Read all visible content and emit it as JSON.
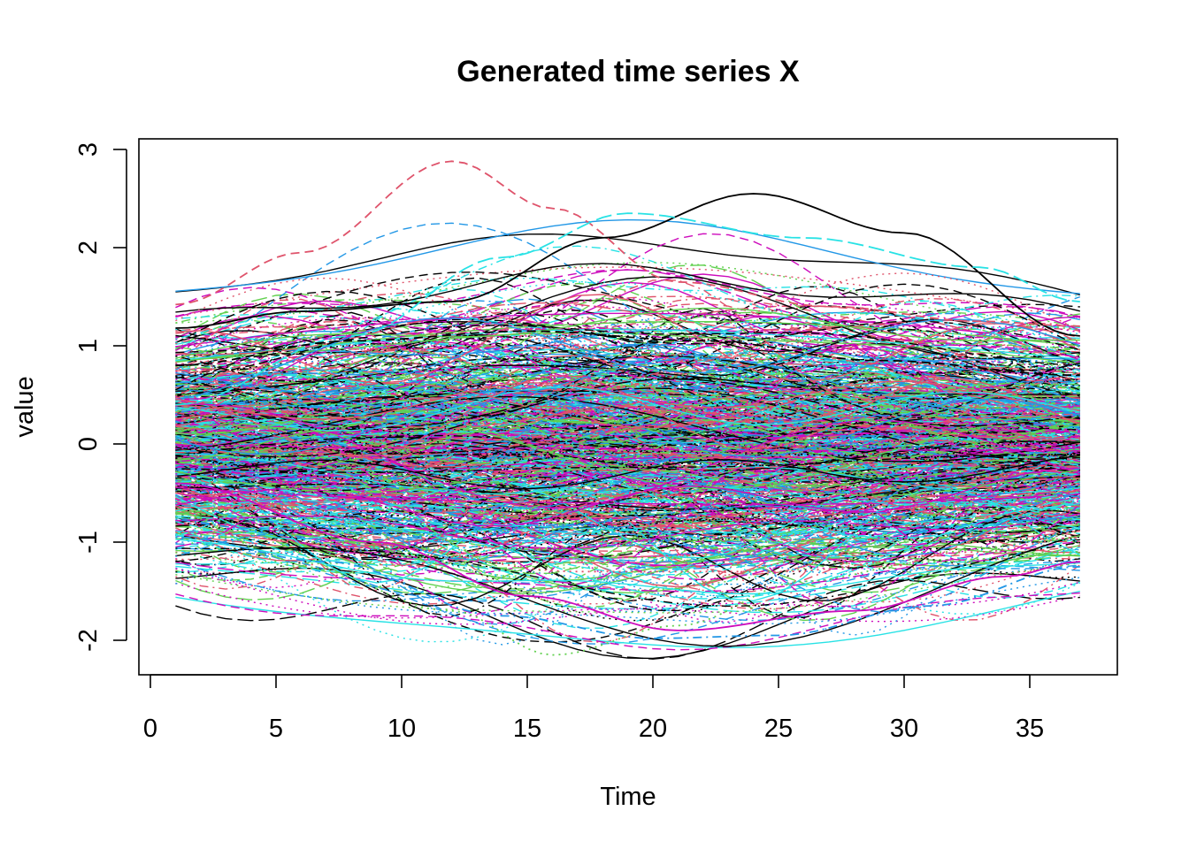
{
  "chart_data": {
    "type": "line",
    "title": "Generated time series X",
    "xlabel": "Time",
    "ylabel": "value",
    "xlim": [
      0,
      38
    ],
    "ylim": [
      -2.3,
      3.1
    ],
    "x_ticks": [
      0,
      5,
      10,
      15,
      20,
      25,
      30,
      35
    ],
    "y_ticks": [
      -2,
      -1,
      0,
      1,
      2,
      3
    ],
    "x_range": [
      1,
      37
    ],
    "legend": "none",
    "grid": false,
    "line_colors": [
      "#000000",
      "#DF536B",
      "#61D04F",
      "#2297E6",
      "#28E2E5",
      "#CD0BBC"
    ],
    "line_styles": [
      "solid",
      "dashed",
      "dotted",
      "dotdash",
      "longdash"
    ],
    "series_count": 800,
    "highlight_series": [
      {
        "x": [
          1,
          6,
          12,
          18,
          24,
          30,
          37
        ],
        "y": [
          1.18,
          1.35,
          1.45,
          2.1,
          2.55,
          2.15,
          1.1
        ]
      },
      {
        "x": [
          1,
          6,
          12,
          16,
          21,
          27,
          33,
          37
        ],
        "y": [
          1.42,
          1.95,
          2.88,
          2.4,
          1.65,
          1.4,
          1.25,
          1.2
        ]
      },
      {
        "x": [
          1,
          6,
          12,
          16,
          21,
          26,
          31,
          37
        ],
        "y": [
          -0.7,
          -1.25,
          -1.7,
          -2.15,
          -1.85,
          -1.4,
          -1.2,
          -1.1
        ]
      },
      {
        "x": [
          1,
          7,
          14,
          20,
          25,
          31,
          37
        ],
        "y": [
          -0.95,
          -1.2,
          -1.75,
          -1.98,
          -1.95,
          -1.65,
          -1.25
        ]
      },
      {
        "x": [
          1,
          8,
          14,
          19,
          26,
          33,
          37
        ],
        "y": [
          0.4,
          1.1,
          1.9,
          2.35,
          2.1,
          1.8,
          1.45
        ]
      },
      {
        "x": [
          1,
          9,
          15,
          21,
          28,
          34,
          37
        ],
        "y": [
          -0.4,
          -1.0,
          -1.55,
          -1.9,
          -1.7,
          -1.35,
          -1.2
        ]
      },
      {
        "x": [
          1,
          8,
          15,
          22,
          29,
          37
        ],
        "y": [
          0.8,
          1.05,
          1.15,
          1.05,
          0.85,
          0.7
        ]
      },
      {
        "x": [
          1,
          9,
          17,
          25,
          33,
          37
        ],
        "y": [
          -0.9,
          -1.05,
          -1.3,
          -1.3,
          -1.1,
          -0.95
        ]
      }
    ]
  }
}
